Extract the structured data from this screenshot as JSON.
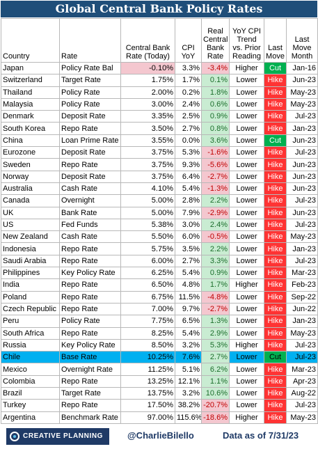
{
  "title": "Global Central Bank Policy Rates",
  "headers": {
    "country": "Country",
    "rate": "Rate",
    "cb_rate": "Central Bank Rate (Today)",
    "cpi": "CPI YoY",
    "real": "Real Central Bank Rate",
    "trend": "YoY CPI Trend vs. Prior Reading",
    "last_move": "Last Move",
    "last_move_month": "Last Move Month"
  },
  "rows": [
    {
      "country": "Japan",
      "rate": "Policy Rate Bal",
      "cb": "-0.10%",
      "cpi": "3.3%",
      "real": "-3.4%",
      "trend": "Higher",
      "move": "Cut",
      "month": "Jan-16"
    },
    {
      "country": "Switzerland",
      "rate": "Target Rate",
      "cb": "1.75%",
      "cpi": "1.7%",
      "real": "0.1%",
      "trend": "Lower",
      "move": "Hike",
      "month": "Jun-23"
    },
    {
      "country": "Thailand",
      "rate": "Policy Rate",
      "cb": "2.00%",
      "cpi": "0.2%",
      "real": "1.8%",
      "trend": "Lower",
      "move": "Hike",
      "month": "May-23"
    },
    {
      "country": "Malaysia",
      "rate": "Policy Rate",
      "cb": "3.00%",
      "cpi": "2.4%",
      "real": "0.6%",
      "trend": "Lower",
      "move": "Hike",
      "month": "May-23"
    },
    {
      "country": "Denmark",
      "rate": "Deposit Rate",
      "cb": "3.35%",
      "cpi": "2.5%",
      "real": "0.9%",
      "trend": "Lower",
      "move": "Hike",
      "month": "Jul-23"
    },
    {
      "country": "South Korea",
      "rate": "Repo Rate",
      "cb": "3.50%",
      "cpi": "2.7%",
      "real": "0.8%",
      "trend": "Lower",
      "move": "Hike",
      "month": "Jan-23"
    },
    {
      "country": "China",
      "rate": "Loan Prime Rate",
      "cb": "3.55%",
      "cpi": "0.0%",
      "real": "3.6%",
      "trend": "Lower",
      "move": "Cut",
      "month": "Jun-23"
    },
    {
      "country": "Eurozone",
      "rate": "Deposit Rate",
      "cb": "3.75%",
      "cpi": "5.3%",
      "real": "-1.6%",
      "trend": "Lower",
      "move": "Hike",
      "month": "Jul-23"
    },
    {
      "country": "Sweden",
      "rate": "Repo Rate",
      "cb": "3.75%",
      "cpi": "9.3%",
      "real": "-5.6%",
      "trend": "Lower",
      "move": "Hike",
      "month": "Jun-23"
    },
    {
      "country": "Norway",
      "rate": "Deposit Rate",
      "cb": "3.75%",
      "cpi": "6.4%",
      "real": "-2.7%",
      "trend": "Lower",
      "move": "Hike",
      "month": "Jun-23"
    },
    {
      "country": "Australia",
      "rate": "Cash Rate",
      "cb": "4.10%",
      "cpi": "5.4%",
      "real": "-1.3%",
      "trend": "Lower",
      "move": "Hike",
      "month": "Jun-23"
    },
    {
      "country": "Canada",
      "rate": "Overnight",
      "cb": "5.00%",
      "cpi": "2.8%",
      "real": "2.2%",
      "trend": "Lower",
      "move": "Hike",
      "month": "Jul-23"
    },
    {
      "country": "UK",
      "rate": "Bank Rate",
      "cb": "5.00%",
      "cpi": "7.9%",
      "real": "-2.9%",
      "trend": "Lower",
      "move": "Hike",
      "month": "Jun-23"
    },
    {
      "country": "US",
      "rate": "Fed Funds",
      "cb": "5.38%",
      "cpi": "3.0%",
      "real": "2.4%",
      "trend": "Lower",
      "move": "Hike",
      "month": "Jul-23"
    },
    {
      "country": "New Zealand",
      "rate": "Cash Rate",
      "cb": "5.50%",
      "cpi": "6.0%",
      "real": "-0.5%",
      "trend": "Lower",
      "move": "Hike",
      "month": "May-23"
    },
    {
      "country": "Indonesia",
      "rate": "Repo Rate",
      "cb": "5.75%",
      "cpi": "3.5%",
      "real": "2.2%",
      "trend": "Lower",
      "move": "Hike",
      "month": "Jan-23"
    },
    {
      "country": "Saudi Arabia",
      "rate": "Repo Rate",
      "cb": "6.00%",
      "cpi": "2.7%",
      "real": "3.3%",
      "trend": "Lower",
      "move": "Hike",
      "month": "Jul-23"
    },
    {
      "country": "Philippines",
      "rate": "Key Policy Rate",
      "cb": "6.25%",
      "cpi": "5.4%",
      "real": "0.9%",
      "trend": "Lower",
      "move": "Hike",
      "month": "Mar-23"
    },
    {
      "country": "India",
      "rate": "Repo Rate",
      "cb": "6.50%",
      "cpi": "4.8%",
      "real": "1.7%",
      "trend": "Higher",
      "move": "Hike",
      "month": "Feb-23"
    },
    {
      "country": "Poland",
      "rate": "Repo Rate",
      "cb": "6.75%",
      "cpi": "11.5%",
      "real": "-4.8%",
      "trend": "Lower",
      "move": "Hike",
      "month": "Sep-22"
    },
    {
      "country": "Czech Republic",
      "rate": "Repo Rate",
      "cb": "7.00%",
      "cpi": "9.7%",
      "real": "-2.7%",
      "trend": "Lower",
      "move": "Hike",
      "month": "Jun-22"
    },
    {
      "country": "Peru",
      "rate": "Policy Rate",
      "cb": "7.75%",
      "cpi": "6.5%",
      "real": "1.3%",
      "trend": "Lower",
      "move": "Hike",
      "month": "Jan-23"
    },
    {
      "country": "South Africa",
      "rate": "Repo Rate",
      "cb": "8.25%",
      "cpi": "5.4%",
      "real": "2.9%",
      "trend": "Lower",
      "move": "Hike",
      "month": "May-23"
    },
    {
      "country": "Russia",
      "rate": "Key Policy Rate",
      "cb": "8.50%",
      "cpi": "3.2%",
      "real": "5.3%",
      "trend": "Higher",
      "move": "Hike",
      "month": "Jul-23"
    },
    {
      "country": "Chile",
      "rate": "Base Rate",
      "cb": "10.25%",
      "cpi": "7.6%",
      "real": "2.7%",
      "trend": "Lower",
      "move": "Cut",
      "month": "Jul-23",
      "highlight": true
    },
    {
      "country": "Mexico",
      "rate": "Overnight Rate",
      "cb": "11.25%",
      "cpi": "5.1%",
      "real": "6.2%",
      "trend": "Lower",
      "move": "Hike",
      "month": "Mar-23"
    },
    {
      "country": "Colombia",
      "rate": "Repo Rate",
      "cb": "13.25%",
      "cpi": "12.1%",
      "real": "1.1%",
      "trend": "Lower",
      "move": "Hike",
      "month": "Apr-23"
    },
    {
      "country": "Brazil",
      "rate": "Target Rate",
      "cb": "13.75%",
      "cpi": "3.2%",
      "real": "10.6%",
      "trend": "Lower",
      "move": "Hike",
      "month": "Aug-22"
    },
    {
      "country": "Turkey",
      "rate": "Repo Rate",
      "cb": "17.50%",
      "cpi": "38.2%",
      "real": "-20.7%",
      "trend": "Lower",
      "move": "Hike",
      "month": "Jul-23"
    },
    {
      "country": "Argentina",
      "rate": "Benchmark Rate",
      "cb": "97.00%",
      "cpi": "115.6%",
      "real": "-18.6%",
      "trend": "Higher",
      "move": "Hike",
      "month": "May-23"
    }
  ],
  "footer": {
    "logo_text": "CREATIVE PLANNING",
    "logo_icon": "creative-planning-logo-mark",
    "handle": "@CharlieBilello",
    "as_of": "Data as of 7/31/23"
  },
  "colors": {
    "header_bg": "#1f4e79",
    "cut": "#00b050",
    "hike": "#ff3333",
    "negative_bg": "#f4c7cf",
    "positive_bg": "#c9ecd2",
    "highlight_row": "#00b0f0"
  }
}
